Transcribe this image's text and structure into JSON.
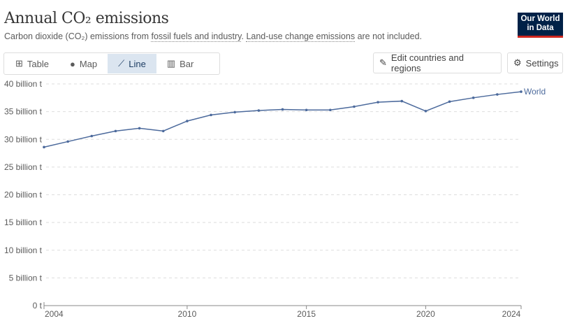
{
  "header": {
    "title": "Annual CO₂ emissions",
    "subtitle_pre": "Carbon dioxide (CO₂) emissions from ",
    "subtitle_link1": "fossil fuels and industry",
    "subtitle_mid": ". ",
    "subtitle_link2": "Land-use change emissions",
    "subtitle_post": " are not included.",
    "logo_line1": "Our World",
    "logo_line2": "in Data"
  },
  "tabs": [
    {
      "label": "Table",
      "icon": "table-icon"
    },
    {
      "label": "Map",
      "icon": "globe-icon"
    },
    {
      "label": "Line",
      "icon": "line-chart-icon",
      "active": true
    },
    {
      "label": "Bar",
      "icon": "bar-chart-icon"
    }
  ],
  "buttons": {
    "edit": "Edit countries and regions",
    "settings": "Settings"
  },
  "colors": {
    "series": "#4c6a9c",
    "grid": "#dddddd",
    "active_tab": "#dbe5f0",
    "logo": "#002147",
    "logo_accent": "#ce261e"
  },
  "chart_data": {
    "type": "line",
    "title": "Annual CO₂ emissions",
    "xlabel": "",
    "ylabel": "",
    "ylim": [
      0,
      40
    ],
    "xlim": [
      2004,
      2024
    ],
    "yticks": [
      0,
      5,
      10,
      15,
      20,
      25,
      30,
      35,
      40
    ],
    "ytick_labels": [
      "0 t",
      "5 billion t",
      "10 billion t",
      "15 billion t",
      "20 billion t",
      "25 billion t",
      "30 billion t",
      "35 billion t",
      "40 billion t"
    ],
    "xticks": [
      2004,
      2010,
      2015,
      2020,
      2024
    ],
    "xtick_labels": [
      "2004",
      "2010",
      "2015",
      "2020",
      "2024"
    ],
    "grid": true,
    "series": [
      {
        "name": "World",
        "x": [
          2004,
          2005,
          2006,
          2007,
          2008,
          2009,
          2010,
          2011,
          2012,
          2013,
          2014,
          2015,
          2016,
          2017,
          2018,
          2019,
          2020,
          2021,
          2022,
          2023,
          2024
        ],
        "values": [
          28.6,
          29.6,
          30.6,
          31.5,
          32.0,
          31.5,
          33.3,
          34.4,
          34.9,
          35.2,
          35.4,
          35.3,
          35.3,
          35.9,
          36.7,
          36.9,
          35.1,
          36.8,
          37.5,
          38.1,
          38.6
        ]
      }
    ]
  }
}
